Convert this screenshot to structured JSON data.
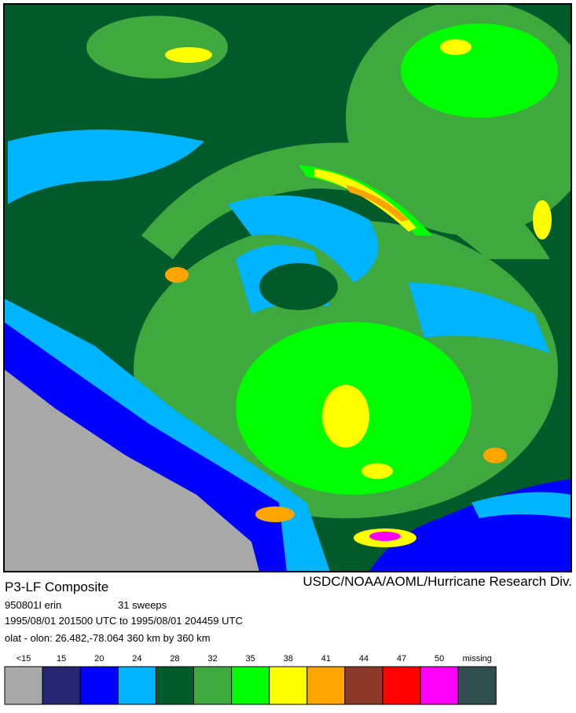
{
  "header": {
    "title": "P3-LF Composite",
    "credit": "USDC/NOAA/AOML/Hurricane Research Div."
  },
  "info": {
    "flight": "950801I  erin",
    "sweeps": "31 sweeps",
    "time_range": "1995/08/01 201500 UTC to 1995/08/01 204459 UTC",
    "origin": "olat - olon: 26.482,-78.064  360 km by 360 km"
  },
  "legend": [
    {
      "label": "<15",
      "color": "#a8a8a8"
    },
    {
      "label": "15",
      "color": "#262673"
    },
    {
      "label": "20",
      "color": "#0000ff"
    },
    {
      "label": "24",
      "color": "#00b4ff"
    },
    {
      "label": "28",
      "color": "#005a2a"
    },
    {
      "label": "32",
      "color": "#3fa83f"
    },
    {
      "label": "35",
      "color": "#00ff00"
    },
    {
      "label": "38",
      "color": "#ffff00"
    },
    {
      "label": "41",
      "color": "#ffa500"
    },
    {
      "label": "44",
      "color": "#8b3a2a"
    },
    {
      "label": "47",
      "color": "#ff0000"
    },
    {
      "label": "50",
      "color": "#ff00ff"
    },
    {
      "label": "missing",
      "color": "#2f4f4f"
    }
  ]
}
